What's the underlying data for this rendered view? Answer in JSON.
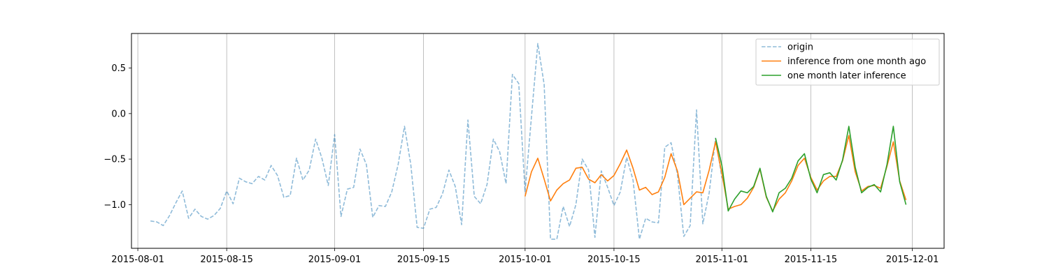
{
  "chart_data": {
    "type": "line",
    "title": "",
    "xlabel": "",
    "ylabel": "",
    "x_axis_type": "date",
    "xlim": [
      "2015-07-31",
      "2015-12-06"
    ],
    "ylim": [
      -1.48,
      0.88
    ],
    "grid": {
      "x": true,
      "y": false
    },
    "legend_position": "upper-right",
    "x_ticks": [
      "2015-08-01",
      "2015-08-15",
      "2015-09-01",
      "2015-09-15",
      "2015-10-01",
      "2015-10-15",
      "2015-11-01",
      "2015-11-15",
      "2015-12-01"
    ],
    "y_ticks": [
      0.5,
      0.0,
      -0.5,
      -1.0
    ],
    "y_tick_labels": [
      "0.5",
      "0.0",
      "−0.5",
      "−1.0"
    ],
    "series": [
      {
        "name": "origin",
        "color": "#1f77b4",
        "style": "dashed",
        "opacity": 0.5,
        "x": [
          "2015-08-03",
          "2015-08-04",
          "2015-08-05",
          "2015-08-06",
          "2015-08-07",
          "2015-08-08",
          "2015-08-09",
          "2015-08-10",
          "2015-08-11",
          "2015-08-12",
          "2015-08-13",
          "2015-08-14",
          "2015-08-15",
          "2015-08-16",
          "2015-08-17",
          "2015-08-18",
          "2015-08-19",
          "2015-08-20",
          "2015-08-21",
          "2015-08-22",
          "2015-08-23",
          "2015-08-24",
          "2015-08-25",
          "2015-08-26",
          "2015-08-27",
          "2015-08-28",
          "2015-08-29",
          "2015-08-30",
          "2015-08-31",
          "2015-09-01",
          "2015-09-02",
          "2015-09-03",
          "2015-09-04",
          "2015-09-05",
          "2015-09-06",
          "2015-09-07",
          "2015-09-08",
          "2015-09-09",
          "2015-09-10",
          "2015-09-11",
          "2015-09-12",
          "2015-09-13",
          "2015-09-14",
          "2015-09-15",
          "2015-09-16",
          "2015-09-17",
          "2015-09-18",
          "2015-09-19",
          "2015-09-20",
          "2015-09-21",
          "2015-09-22",
          "2015-09-23",
          "2015-09-24",
          "2015-09-25",
          "2015-09-26",
          "2015-09-27",
          "2015-09-28",
          "2015-09-29",
          "2015-09-30",
          "2015-10-01",
          "2015-10-02",
          "2015-10-03",
          "2015-10-04",
          "2015-10-05",
          "2015-10-06",
          "2015-10-07",
          "2015-10-08",
          "2015-10-09",
          "2015-10-10",
          "2015-10-11",
          "2015-10-12",
          "2015-10-13",
          "2015-10-14",
          "2015-10-15",
          "2015-10-16",
          "2015-10-17",
          "2015-10-18",
          "2015-10-19",
          "2015-10-20",
          "2015-10-21",
          "2015-10-22",
          "2015-10-23",
          "2015-10-24",
          "2015-10-25",
          "2015-10-26",
          "2015-10-27",
          "2015-10-28",
          "2015-10-29",
          "2015-10-30",
          "2015-10-31",
          "2015-11-01"
        ],
        "y": [
          -1.18,
          -1.19,
          -1.23,
          -1.12,
          -0.98,
          -0.85,
          -1.15,
          -1.05,
          -1.13,
          -1.16,
          -1.12,
          -1.04,
          -0.85,
          -0.99,
          -0.71,
          -0.75,
          -0.77,
          -0.69,
          -0.73,
          -0.57,
          -0.68,
          -0.92,
          -0.9,
          -0.49,
          -0.73,
          -0.62,
          -0.28,
          -0.49,
          -0.79,
          -0.23,
          -1.13,
          -0.83,
          -0.81,
          -0.39,
          -0.56,
          -1.14,
          -1.01,
          -1.02,
          -0.86,
          -0.56,
          -0.14,
          -0.56,
          -1.25,
          -1.26,
          -1.05,
          -1.03,
          -0.88,
          -0.62,
          -0.8,
          -1.22,
          -0.07,
          -0.91,
          -0.99,
          -0.78,
          -0.28,
          -0.42,
          -0.77,
          0.43,
          0.33,
          -0.86,
          -0.04,
          0.77,
          0.32,
          -1.38,
          -1.38,
          -1.02,
          -1.24,
          -1.0,
          -0.5,
          -0.62,
          -1.36,
          -0.63,
          -0.81,
          -1.01,
          -0.86,
          -0.48,
          -0.73,
          -1.38,
          -1.15,
          -1.19,
          -1.2,
          -0.37,
          -0.32,
          -0.67,
          -1.35,
          -1.23,
          0.04,
          -1.21,
          -0.87,
          -0.27,
          -0.71
        ]
      },
      {
        "name": "inference from one month ago",
        "color": "#ff7f0e",
        "style": "solid",
        "opacity": 1,
        "x": [
          "2015-10-01",
          "2015-10-02",
          "2015-10-03",
          "2015-10-04",
          "2015-10-05",
          "2015-10-06",
          "2015-10-07",
          "2015-10-08",
          "2015-10-09",
          "2015-10-10",
          "2015-10-11",
          "2015-10-12",
          "2015-10-13",
          "2015-10-14",
          "2015-10-15",
          "2015-10-16",
          "2015-10-17",
          "2015-10-18",
          "2015-10-19",
          "2015-10-20",
          "2015-10-21",
          "2015-10-22",
          "2015-10-23",
          "2015-10-24",
          "2015-10-25",
          "2015-10-26",
          "2015-10-27",
          "2015-10-28",
          "2015-10-29",
          "2015-10-30",
          "2015-10-31",
          "2015-11-01",
          "2015-11-02",
          "2015-11-03",
          "2015-11-04",
          "2015-11-05",
          "2015-11-06",
          "2015-11-07",
          "2015-11-08",
          "2015-11-09",
          "2015-11-10",
          "2015-11-11",
          "2015-11-12",
          "2015-11-13",
          "2015-11-14",
          "2015-11-15",
          "2015-11-16",
          "2015-11-17",
          "2015-11-18",
          "2015-11-19",
          "2015-11-20",
          "2015-11-21",
          "2015-11-22",
          "2015-11-23",
          "2015-11-24",
          "2015-11-25",
          "2015-11-26",
          "2015-11-27",
          "2015-11-28",
          "2015-11-29",
          "2015-11-30"
        ],
        "y": [
          -0.91,
          -0.64,
          -0.49,
          -0.72,
          -0.96,
          -0.84,
          -0.77,
          -0.73,
          -0.6,
          -0.59,
          -0.72,
          -0.76,
          -0.67,
          -0.74,
          -0.68,
          -0.55,
          -0.4,
          -0.6,
          -0.84,
          -0.81,
          -0.89,
          -0.86,
          -0.7,
          -0.44,
          -0.63,
          -1.0,
          -0.93,
          -0.86,
          -0.87,
          -0.62,
          -0.31,
          -0.66,
          -1.05,
          -1.02,
          -1.0,
          -0.93,
          -0.81,
          -0.61,
          -0.92,
          -1.07,
          -0.94,
          -0.87,
          -0.74,
          -0.57,
          -0.49,
          -0.7,
          -0.84,
          -0.74,
          -0.69,
          -0.69,
          -0.52,
          -0.24,
          -0.64,
          -0.85,
          -0.8,
          -0.79,
          -0.82,
          -0.58,
          -0.31,
          -0.74,
          -0.95
        ]
      },
      {
        "name": "one month later inference",
        "color": "#2ca02c",
        "style": "solid",
        "opacity": 1,
        "x": [
          "2015-10-31",
          "2015-11-01",
          "2015-11-02",
          "2015-11-03",
          "2015-11-04",
          "2015-11-05",
          "2015-11-06",
          "2015-11-07",
          "2015-11-08",
          "2015-11-09",
          "2015-11-10",
          "2015-11-11",
          "2015-11-12",
          "2015-11-13",
          "2015-11-14",
          "2015-11-15",
          "2015-11-16",
          "2015-11-17",
          "2015-11-18",
          "2015-11-19",
          "2015-11-20",
          "2015-11-21",
          "2015-11-22",
          "2015-11-23",
          "2015-11-24",
          "2015-11-25",
          "2015-11-26",
          "2015-11-27",
          "2015-11-28",
          "2015-11-29",
          "2015-11-30"
        ],
        "y": [
          -0.27,
          -0.57,
          -1.07,
          -0.94,
          -0.85,
          -0.87,
          -0.8,
          -0.6,
          -0.91,
          -1.08,
          -0.87,
          -0.82,
          -0.71,
          -0.52,
          -0.44,
          -0.72,
          -0.87,
          -0.67,
          -0.65,
          -0.73,
          -0.51,
          -0.14,
          -0.59,
          -0.87,
          -0.81,
          -0.78,
          -0.86,
          -0.56,
          -0.14,
          -0.75,
          -1.0
        ]
      }
    ]
  }
}
